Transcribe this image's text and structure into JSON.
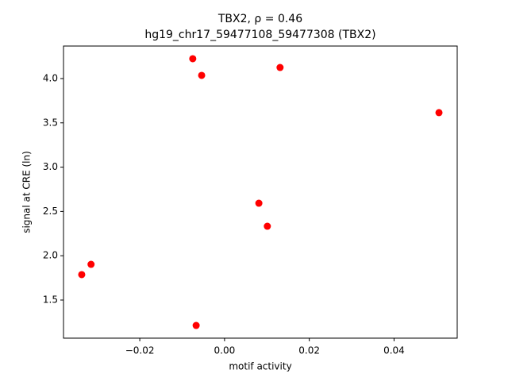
{
  "chart_data": {
    "type": "scatter",
    "title": "TBX2, ρ = 0.46",
    "subtitle": "hg19_chr17_59477108_59477308 (TBX2)",
    "x_label": "motif activity",
    "y_label": "signal at CRE (ln)",
    "color": "#ff0000",
    "grid": false,
    "x": [
      -0.0075,
      -0.0054,
      0.0131,
      0.0506,
      0.0081,
      0.0101,
      -0.0315,
      -0.0337,
      -0.0067
    ],
    "values": [
      4.224,
      4.036,
      4.125,
      3.615,
      2.593,
      2.333,
      1.903,
      1.787,
      1.213
    ],
    "xlim": [
      -0.038,
      0.0549
    ],
    "ylim": [
      1.07,
      4.367
    ],
    "xticks": [
      {
        "value": -0.02,
        "label": "−0.02"
      },
      {
        "value": 0,
        "label": "0.00"
      },
      {
        "value": 0.02,
        "label": "0.02"
      },
      {
        "value": 0.04,
        "label": "0.04"
      }
    ],
    "yticks": [
      1.5,
      {
        "value": 2,
        "label": "2.0"
      },
      2.5,
      {
        "value": 3,
        "label": "3.0"
      },
      3.5,
      {
        "value": 4,
        "label": "4.0"
      }
    ]
  }
}
